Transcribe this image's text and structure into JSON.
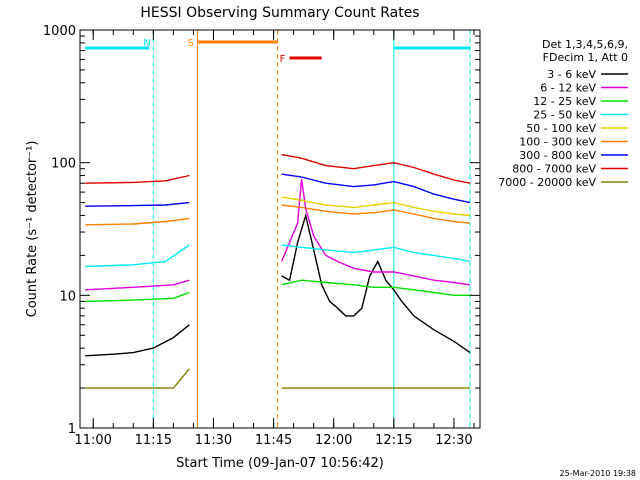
{
  "chart_data": {
    "type": "line",
    "title": "HESSI Observing Summary Count Rates",
    "xlabel": "Start Time (09-Jan-07 10:56:42)",
    "ylabel": "Count Rate (s⁻¹ detector⁻¹)",
    "y_scale": "log",
    "ylim": [
      1,
      1000
    ],
    "xlim": [
      "10:56:42",
      "12:36:30"
    ],
    "x_ticks": [
      "11:00",
      "11:15",
      "11:30",
      "11:45",
      "12:00",
      "12:15",
      "12:30"
    ],
    "y_ticks": [
      "1",
      "10",
      "100",
      "1000"
    ],
    "legend_header": [
      "Det 1,3,4,5,6,9,",
      "FDecim 1, Att 0"
    ],
    "legend_position": "right",
    "footer_date": "25-Mar-2010 19:38",
    "series": [
      {
        "name": "3 - 6 keV",
        "color": "#000000",
        "segments": [
          {
            "x": [
              "10:58",
              "11:05",
              "11:10",
              "11:15",
              "11:20",
              "11:24"
            ],
            "y": [
              3.5,
              3.6,
              3.7,
              4.0,
              4.8,
              6.0
            ]
          },
          {
            "x": [
              "11:47",
              "11:49",
              "11:51",
              "11:53",
              "11:55",
              "11:57",
              "11:59",
              "12:01",
              "12:03",
              "12:05",
              "12:07",
              "12:09",
              "12:11",
              "12:13",
              "12:15",
              "12:17",
              "12:20",
              "12:25",
              "12:30",
              "12:34"
            ],
            "y": [
              14,
              13,
              25,
              40,
              22,
              12,
              9,
              8,
              7,
              7,
              8,
              14,
              18,
              13,
              11,
              9,
              7,
              5.5,
              4.5,
              3.7
            ]
          }
        ]
      },
      {
        "name": "6 - 12 keV",
        "color": "#e000e0",
        "segments": [
          {
            "x": [
              "10:58",
              "11:10",
              "11:20",
              "11:24"
            ],
            "y": [
              11,
              11.5,
              12,
              13
            ]
          },
          {
            "x": [
              "11:47",
              "11:49",
              "11:51",
              "11:52",
              "11:53",
              "11:55",
              "11:58",
              "12:01",
              "12:05",
              "12:10",
              "12:15",
              "12:20",
              "12:25",
              "12:30",
              "12:34"
            ],
            "y": [
              18,
              25,
              35,
              75,
              45,
              28,
              20,
              18,
              16,
              15,
              15,
              14,
              13,
              12.5,
              12
            ]
          }
        ]
      },
      {
        "name": "12 - 25 keV",
        "color": "#00e000",
        "segments": [
          {
            "x": [
              "10:58",
              "11:10",
              "11:20",
              "11:24"
            ],
            "y": [
              9,
              9.2,
              9.5,
              10.5
            ]
          },
          {
            "x": [
              "11:47",
              "11:52",
              "11:58",
              "12:05",
              "12:10",
              "12:15",
              "12:20",
              "12:25",
              "12:30",
              "12:34"
            ],
            "y": [
              12,
              13,
              12.5,
              12,
              11.5,
              11.5,
              11,
              10.5,
              10,
              10
            ]
          }
        ]
      },
      {
        "name": "25 - 50 keV",
        "color": "#00e8f0",
        "segments": [
          {
            "x": [
              "10:58",
              "11:10",
              "11:18",
              "11:24"
            ],
            "y": [
              16.5,
              17,
              18,
              24
            ]
          },
          {
            "x": [
              "11:47",
              "11:52",
              "11:58",
              "12:05",
              "12:10",
              "12:15",
              "12:20",
              "12:25",
              "12:30",
              "12:34"
            ],
            "y": [
              24,
              23,
              22,
              21,
              22,
              23,
              21,
              20,
              19,
              18
            ]
          }
        ]
      },
      {
        "name": "50 - 100 keV",
        "color": "#e8d000",
        "segments": [
          {
            "x": [
              "11:47",
              "11:52",
              "11:58",
              "12:05",
              "12:10",
              "12:15",
              "12:20",
              "12:25",
              "12:30",
              "12:34"
            ],
            "y": [
              55,
              52,
              48,
              46,
              48,
              50,
              46,
              43,
              41,
              40
            ]
          }
        ]
      },
      {
        "name": "100 - 300 keV",
        "color": "#ff8000",
        "segments": [
          {
            "x": [
              "10:58",
              "11:10",
              "11:18",
              "11:24"
            ],
            "y": [
              34,
              34.5,
              36,
              38
            ]
          },
          {
            "x": [
              "11:47",
              "11:52",
              "11:58",
              "12:05",
              "12:10",
              "12:15",
              "12:20",
              "12:25",
              "12:30",
              "12:34"
            ],
            "y": [
              48,
              46,
              43,
              41,
              42,
              44,
              41,
              38,
              36,
              35
            ]
          }
        ]
      },
      {
        "name": "300 - 800 keV",
        "color": "#0000ff",
        "segments": [
          {
            "x": [
              "10:58",
              "11:10",
              "11:18",
              "11:24"
            ],
            "y": [
              47,
              47.5,
              48,
              50
            ]
          },
          {
            "x": [
              "11:47",
              "11:52",
              "11:58",
              "12:05",
              "12:10",
              "12:15",
              "12:20",
              "12:25",
              "12:30",
              "12:34"
            ],
            "y": [
              82,
              78,
              70,
              66,
              68,
              72,
              66,
              58,
              53,
              50
            ]
          }
        ]
      },
      {
        "name": "800 - 7000 keV",
        "color": "#e00000",
        "segments": [
          {
            "x": [
              "10:58",
              "11:10",
              "11:18",
              "11:24"
            ],
            "y": [
              70,
              71,
              73,
              80
            ]
          },
          {
            "x": [
              "11:47",
              "11:52",
              "11:58",
              "12:05",
              "12:10",
              "12:15",
              "12:20",
              "12:25",
              "12:30",
              "12:34"
            ],
            "y": [
              115,
              108,
              95,
              90,
              95,
              100,
              92,
              82,
              74,
              70
            ]
          }
        ]
      },
      {
        "name": "7000 - 20000 keV",
        "color": "#808000",
        "segments": [
          {
            "x": [
              "10:58",
              "11:05",
              "11:10",
              "11:15",
              "11:20",
              "11:24"
            ],
            "y": [
              2,
              2,
              2,
              2,
              2,
              2.8
            ]
          },
          {
            "x": [
              "11:47",
              "11:55",
              "12:05",
              "12:15",
              "12:25",
              "12:34"
            ],
            "y": [
              2,
              2,
              2,
              2,
              2,
              2
            ]
          }
        ]
      }
    ],
    "flag_bars": [
      {
        "label": "",
        "start": "10:58",
        "end": "11:14",
        "color": "#00e8f0"
      },
      {
        "label": "N",
        "start": "11:15",
        "end": "11:15",
        "color": "#00e8f0"
      },
      {
        "label": "S",
        "start": "11:26",
        "end": "11:46",
        "color": "#ff8000"
      },
      {
        "label": "F",
        "start": "11:49",
        "end": "11:57",
        "color": "#e00000"
      },
      {
        "label": "",
        "start": "12:15",
        "end": "12:34",
        "color": "#00e8f0"
      }
    ],
    "vertical_markers": [
      {
        "x": "11:15",
        "color": "#00e8f0",
        "style": "dashed"
      },
      {
        "x": "11:26",
        "color": "#ff8000",
        "style": "solid"
      },
      {
        "x": "11:46",
        "color": "#ff8000",
        "style": "dashed"
      },
      {
        "x": "12:15",
        "color": "#00e8f0",
        "style": "solid"
      },
      {
        "x": "12:34",
        "color": "#00e8f0",
        "style": "dashed"
      }
    ]
  }
}
